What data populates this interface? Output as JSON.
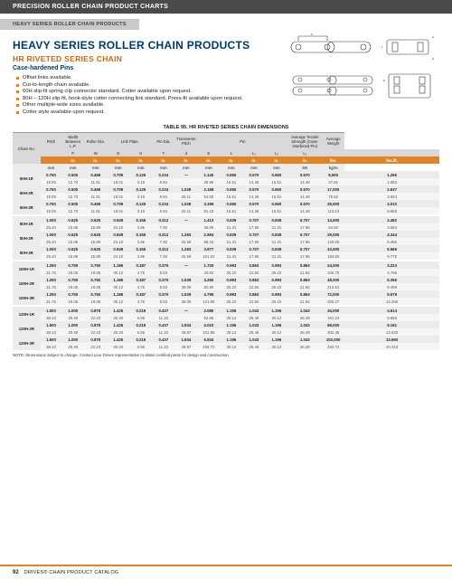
{
  "header": {
    "band": "PRECISION ROLLER CHAIN PRODUCT CHARTS",
    "sub": "HEAVY SERIES ROLLER CHAIN PRODUCTS"
  },
  "title": "HEAVY SERIES ROLLER CHAIN PRODUCTS",
  "series": "HR RIVETED SERIES CHAIN",
  "subtitle": "Case-hardened Pins",
  "bullets": [
    "Offset links available.",
    "Cut-to-length chain available.",
    "60H slip-fit spring clip connector standard. Cotter available upon request.",
    "80H – 120H slip-fit, hook-style cotter connecting link standard. Press-fit available upon request.",
    "Other multiple-wide sizes available.",
    "Cotter style available upon request."
  ],
  "tableTitle": "TABLE 95. HR RIVETED SERIES CHAIN DIMENSIONS",
  "thead": {
    "grp": [
      "Chain No.",
      "Pitch",
      "Width Between L.P.",
      "Roller Dia.",
      "Link Plate",
      "",
      "Pin Dia.",
      "Transverse Pitch",
      "Pin",
      "",
      "",
      "",
      "Average Tensile Strength (Case-Hardened Pin)",
      "Average Weight"
    ],
    "labels": [
      "",
      "P",
      "W",
      "D",
      "H",
      "T",
      "d",
      "E",
      "L",
      "L₁",
      "L₂",
      "L₃",
      "",
      ""
    ],
    "u1": [
      "",
      "in.",
      "in.",
      "in.",
      "in.",
      "in.",
      "in.",
      "in.",
      "in.",
      "in.",
      "in.",
      "in.",
      "lbs.",
      "lbs./ft."
    ],
    "u2": [
      "",
      "mm",
      "mm",
      "mm",
      "mm",
      "mm",
      "mm",
      "mm",
      "mm",
      "mm",
      "mm",
      "mm",
      "kN",
      "kg/m"
    ]
  },
  "rows": [
    {
      "n": "60H-1R",
      "a": [
        "0.750",
        "0.500",
        "0.469",
        "0.709",
        "0.125",
        "0.234",
        "—",
        "1.140",
        "0.650",
        "0.570",
        "0.650",
        "0.570",
        "8,500",
        "1.265"
      ],
      "b": [
        "19.05",
        "12.70",
        "11.91",
        "18.01",
        "3.18",
        "5.94",
        "",
        "28.96",
        "16.51",
        "14.48",
        "16.51",
        "14.48",
        "37.81",
        "1.883"
      ]
    },
    {
      "n": "60H-2R",
      "a": [
        "0.750",
        "0.500",
        "0.469",
        "0.709",
        "0.125",
        "0.234",
        "1.028",
        "2.168",
        "0.650",
        "0.570",
        "0.650",
        "0.570",
        "17,000",
        "2.637"
      ],
      "b": [
        "19.05",
        "12.70",
        "11.91",
        "18.01",
        "3.18",
        "5.94",
        "26.11",
        "54.60",
        "16.51",
        "14.48",
        "16.51",
        "14.48",
        "75.62",
        "3.924"
      ]
    },
    {
      "n": "60H-3R",
      "a": [
        "0.750",
        "0.500",
        "0.469",
        "0.709",
        "0.125",
        "0.234",
        "1.028",
        "3.196",
        "0.650",
        "0.570",
        "0.650",
        "0.570",
        "25,500",
        "4.010"
      ],
      "b": [
        "19.05",
        "12.70",
        "11.91",
        "18.01",
        "3.18",
        "5.94",
        "26.11",
        "81.18",
        "16.51",
        "14.48",
        "16.51",
        "14.48",
        "113.43",
        "5.968"
      ]
    },
    {
      "n": "80H-1R",
      "a": [
        "1.000",
        "0.625",
        "0.625",
        "0.949",
        "0.156",
        "0.312",
        "—",
        "1.413",
        "0.839",
        "0.707",
        "0.839",
        "0.707",
        "14,500",
        "2.482"
      ],
      "b": [
        "25.40",
        "15.88",
        "15.88",
        "24.10",
        "3.96",
        "7.92",
        "",
        "35.89",
        "21.31",
        "17.96",
        "21.31",
        "17.96",
        "64.50",
        "3.694"
      ]
    },
    {
      "n": "80H-2R",
      "a": [
        "1.000",
        "0.625",
        "0.625",
        "0.949",
        "0.156",
        "0.312",
        "1.283",
        "2.694",
        "0.839",
        "0.707",
        "0.839",
        "0.707",
        "29,000",
        "4.344"
      ],
      "b": [
        "25.40",
        "15.88",
        "15.88",
        "24.10",
        "3.96",
        "7.92",
        "32.59",
        "68.43",
        "21.31",
        "17.96",
        "21.31",
        "17.96",
        "129.00",
        "6.465"
      ]
    },
    {
      "n": "80H-3R",
      "a": [
        "1.000",
        "0.625",
        "0.625",
        "0.949",
        "0.156",
        "0.312",
        "1.283",
        "3.977",
        "0.839",
        "0.707",
        "0.839",
        "0.707",
        "43,500",
        "6.569"
      ],
      "b": [
        "25.40",
        "15.88",
        "15.88",
        "24.10",
        "3.96",
        "7.92",
        "32.59",
        "101.02",
        "21.31",
        "17.96",
        "21.31",
        "17.96",
        "193.50",
        "9.776"
      ]
    },
    {
      "n": "100H-1R",
      "a": [
        "1.250",
        "0.750",
        "0.750",
        "1.186",
        "0.187",
        "0.375",
        "—",
        "1.725",
        "0.993",
        "0.863",
        "0.993",
        "0.863",
        "24,000",
        "3.223"
      ],
      "b": [
        "31.75",
        "19.05",
        "19.05",
        "30.12",
        "4.75",
        "9.53",
        "",
        "43.82",
        "25.22",
        "21.92",
        "25.22",
        "21.92",
        "106.76",
        "4.796"
      ]
    },
    {
      "n": "100H-2R",
      "a": [
        "1.250",
        "0.750",
        "0.750",
        "1.186",
        "0.187",
        "0.375",
        "1.539",
        "3.260",
        "0.993",
        "0.863",
        "0.993",
        "0.863",
        "48,000",
        "6.356"
      ],
      "b": [
        "31.75",
        "19.05",
        "19.05",
        "30.12",
        "4.75",
        "9.53",
        "39.09",
        "82.80",
        "25.22",
        "21.92",
        "25.22",
        "21.92",
        "213.51",
        "9.459"
      ]
    },
    {
      "n": "100H-3R",
      "a": [
        "1.250",
        "0.750",
        "0.750",
        "1.186",
        "0.187",
        "0.375",
        "1.539",
        "4.795",
        "0.993",
        "0.863",
        "0.993",
        "0.863",
        "72,000",
        "9.579"
      ],
      "b": [
        "31.75",
        "19.05",
        "19.05",
        "30.12",
        "4.75",
        "9.53",
        "39.09",
        "121.89",
        "25.22",
        "21.92",
        "25.22",
        "21.92",
        "320.27",
        "14.255"
      ]
    },
    {
      "n": "120H-1R",
      "a": [
        "1.500",
        "1.000",
        "0.875",
        "1.425",
        "0.219",
        "0.437",
        "—",
        "2.085",
        "1.196",
        "1.043",
        "1.196",
        "1.043",
        "34,000",
        "4.614"
      ],
      "b": [
        "38.10",
        "25.40",
        "22.23",
        "36.20",
        "5.56",
        "11.10",
        "",
        "52.96",
        "30.12",
        "26.49",
        "30.12",
        "26.49",
        "151.24",
        "6.866"
      ]
    },
    {
      "n": "120H-2R",
      "a": [
        "1.500",
        "1.000",
        "0.875",
        "1.425",
        "0.219",
        "0.437",
        "1.934",
        "4.010",
        "1.196",
        "1.043",
        "1.196",
        "1.043",
        "68,000",
        "9.161"
      ],
      "b": [
        "38.10",
        "25.40",
        "22.23",
        "36.20",
        "5.56",
        "11.10",
        "48.87",
        "101.85",
        "30.12",
        "26.49",
        "30.12",
        "26.49",
        "302.48",
        "13.633"
      ]
    },
    {
      "n": "120H-3R",
      "a": [
        "1.500",
        "1.000",
        "0.875",
        "1.425",
        "0.219",
        "0.437",
        "1.934",
        "5.934",
        "1.196",
        "1.043",
        "1.196",
        "1.043",
        "102,000",
        "13.650"
      ],
      "b": [
        "38.10",
        "25.40",
        "22.23",
        "36.20",
        "5.56",
        "11.10",
        "48.87",
        "150.72",
        "30.12",
        "26.49",
        "30.12",
        "26.49",
        "453.72",
        "20.313"
      ]
    }
  ],
  "note": "NOTE: Dimensions subject to change. Contact your Drives representative to obtain certified prints for design and construction.",
  "footer": {
    "page": "92",
    "text": "DRIVES® CHAIN PRODUCT CATALOG"
  }
}
